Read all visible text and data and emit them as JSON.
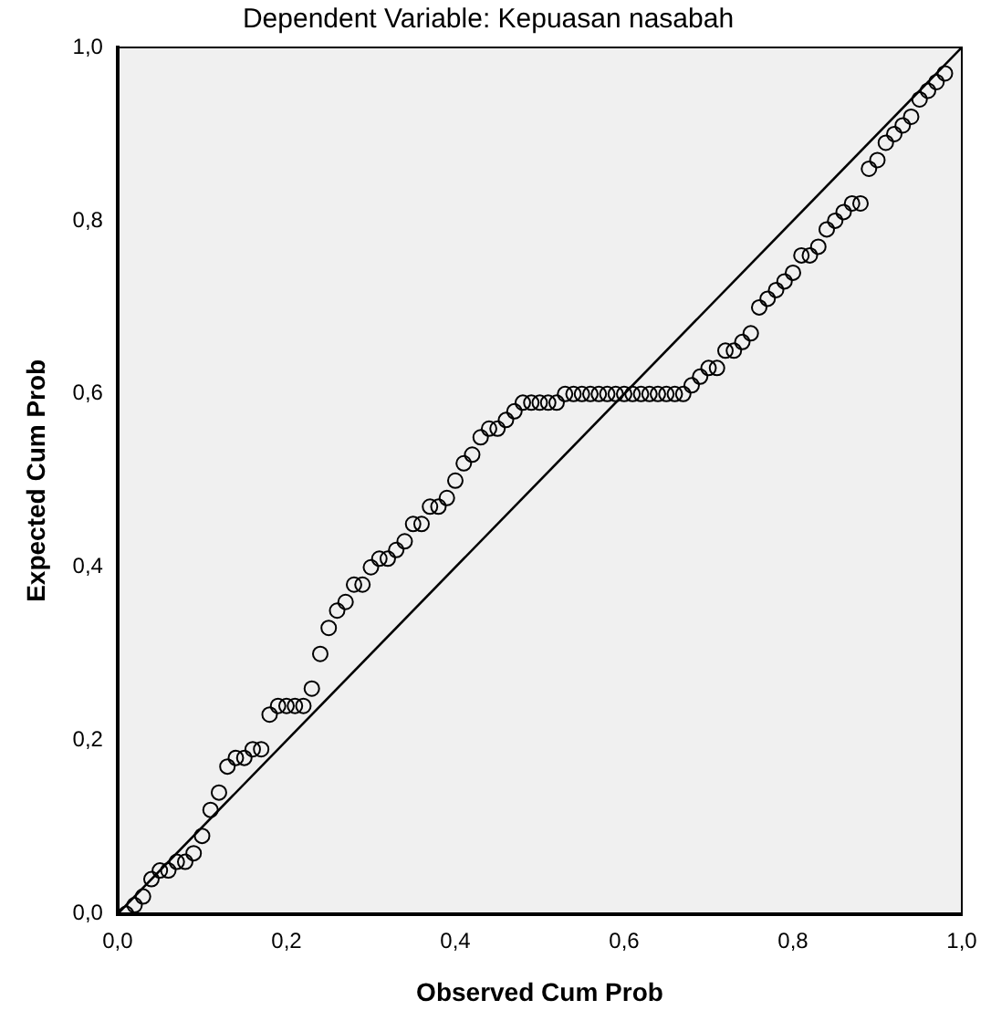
{
  "chart_data": {
    "type": "scatter",
    "title": "Dependent Variable: Kepuasan nasabah",
    "xlabel": "Observed Cum Prob",
    "ylabel": "Expected Cum Prob",
    "xlim": [
      0,
      1
    ],
    "ylim": [
      0,
      1
    ],
    "xticks": [
      {
        "value": 0,
        "label": "0,0"
      },
      {
        "value": 0.2,
        "label": "0,2"
      },
      {
        "value": 0.4,
        "label": "0,4"
      },
      {
        "value": 0.6,
        "label": "0,6"
      },
      {
        "value": 0.8,
        "label": "0,8"
      },
      {
        "value": 1,
        "label": "1,0"
      }
    ],
    "yticks": [
      {
        "value": 0,
        "label": "0,0"
      },
      {
        "value": 0.2,
        "label": "0,2"
      },
      {
        "value": 0.4,
        "label": "0,4"
      },
      {
        "value": 0.6,
        "label": "0,6"
      },
      {
        "value": 0.8,
        "label": "0,8"
      },
      {
        "value": 1,
        "label": "1,0"
      }
    ],
    "grid": false,
    "legend": false,
    "marker": "circle",
    "series": [
      {
        "color": "#000000",
        "x": [
          0.01,
          0.02,
          0.03,
          0.04,
          0.05,
          0.06,
          0.07,
          0.08,
          0.09,
          0.1,
          0.11,
          0.12,
          0.13,
          0.14,
          0.15,
          0.16,
          0.17,
          0.18,
          0.19,
          0.2,
          0.21,
          0.22,
          0.23,
          0.24,
          0.25,
          0.26,
          0.27,
          0.28,
          0.29,
          0.3,
          0.31,
          0.32,
          0.33,
          0.34,
          0.35,
          0.36,
          0.37,
          0.38,
          0.39,
          0.4,
          0.41,
          0.42,
          0.43,
          0.44,
          0.45,
          0.46,
          0.47,
          0.48,
          0.49,
          0.5,
          0.51,
          0.52,
          0.53,
          0.54,
          0.55,
          0.56,
          0.57,
          0.58,
          0.59,
          0.6,
          0.61,
          0.62,
          0.63,
          0.64,
          0.65,
          0.66,
          0.67,
          0.68,
          0.69,
          0.7,
          0.71,
          0.72,
          0.73,
          0.74,
          0.75,
          0.76,
          0.77,
          0.78,
          0.79,
          0.8,
          0.81,
          0.82,
          0.83,
          0.84,
          0.85,
          0.86,
          0.87,
          0.88,
          0.89,
          0.9,
          0.91,
          0.92,
          0.93,
          0.94,
          0.95,
          0.96,
          0.97,
          0.98
        ],
        "values": [
          0.0,
          0.01,
          0.02,
          0.04,
          0.05,
          0.05,
          0.06,
          0.06,
          0.07,
          0.09,
          0.12,
          0.14,
          0.17,
          0.18,
          0.18,
          0.19,
          0.19,
          0.23,
          0.24,
          0.24,
          0.24,
          0.24,
          0.26,
          0.3,
          0.33,
          0.35,
          0.36,
          0.38,
          0.38,
          0.4,
          0.41,
          0.41,
          0.42,
          0.43,
          0.45,
          0.45,
          0.47,
          0.47,
          0.48,
          0.5,
          0.52,
          0.53,
          0.55,
          0.56,
          0.56,
          0.57,
          0.58,
          0.59,
          0.59,
          0.59,
          0.59,
          0.59,
          0.6,
          0.6,
          0.6,
          0.6,
          0.6,
          0.6,
          0.6,
          0.6,
          0.6,
          0.6,
          0.6,
          0.6,
          0.6,
          0.6,
          0.6,
          0.61,
          0.62,
          0.63,
          0.63,
          0.65,
          0.65,
          0.66,
          0.67,
          0.7,
          0.71,
          0.72,
          0.73,
          0.74,
          0.76,
          0.76,
          0.77,
          0.79,
          0.8,
          0.81,
          0.82,
          0.82,
          0.86,
          0.87,
          0.89,
          0.9,
          0.91,
          0.92,
          0.94,
          0.95,
          0.96,
          0.97
        ]
      },
      {
        "type": "line",
        "marker": "none",
        "color": "#000000",
        "x": [
          0,
          1
        ],
        "values": [
          0,
          1
        ]
      }
    ]
  }
}
